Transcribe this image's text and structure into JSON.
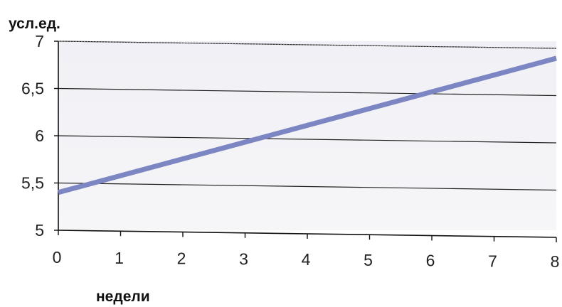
{
  "chart_data": {
    "type": "line",
    "xlabel": "недели",
    "ylabel": "усл.ед.",
    "xlim": [
      0,
      8
    ],
    "ylim": [
      5,
      7
    ],
    "x_ticks": [
      "0",
      "1",
      "2",
      "3",
      "4",
      "5",
      "6",
      "7",
      "8"
    ],
    "y_ticks": [
      "7",
      "6,5",
      "6",
      "5,5",
      "5"
    ],
    "x_tick_values": [
      0,
      1,
      2,
      3,
      4,
      5,
      6,
      7,
      8
    ],
    "y_tick_values": [
      7,
      6.5,
      6,
      5.5,
      5
    ],
    "grid": "horizontal",
    "series": [
      {
        "x": [
          0,
          8
        ],
        "y": [
          5.4,
          6.82
        ],
        "color": "#7c86c2"
      }
    ],
    "colors": {
      "plot_background": "#f1f1f6",
      "line": "#7c86c2",
      "grid": "#222222"
    }
  }
}
